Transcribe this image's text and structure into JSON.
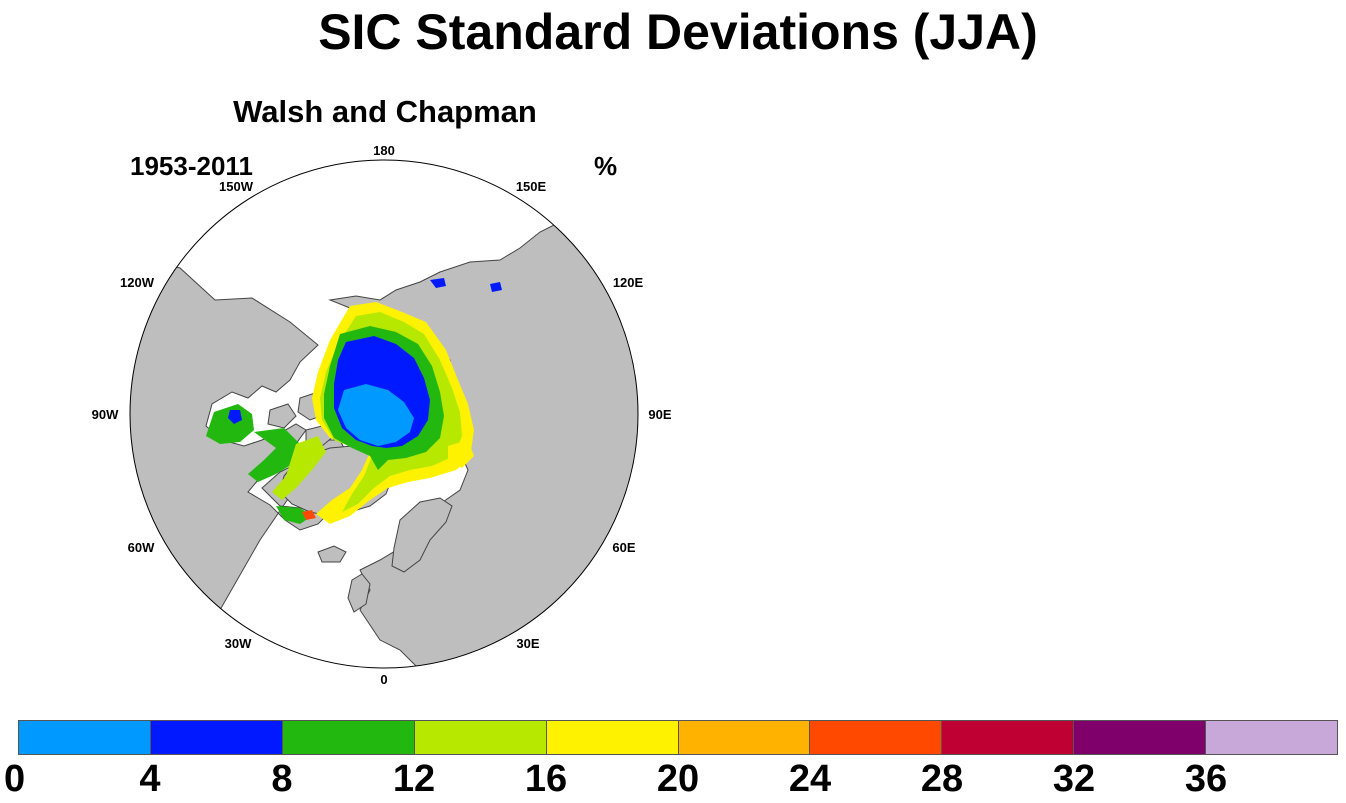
{
  "title": "SIC Standard Deviations (JJA)",
  "panel": {
    "title": "Walsh and Chapman",
    "period": "1953-2011",
    "units": "%"
  },
  "map": {
    "projection": "north-polar-stereographic",
    "land_color": "#bebebe",
    "ocean_color": "#ffffff",
    "longitude_labels": [
      "180",
      "150E",
      "120E",
      "90E",
      "60E",
      "30E",
      "0",
      "30W",
      "60W",
      "90W",
      "120W",
      "150W"
    ]
  },
  "colorbar": {
    "colors": [
      "#0099ff",
      "#0019ff",
      "#23b80f",
      "#b7e800",
      "#fff200",
      "#ffb300",
      "#ff4800",
      "#bf0033",
      "#80006b",
      "#c8a8d8"
    ],
    "labels": [
      "0",
      "4",
      "8",
      "12",
      "16",
      "20",
      "24",
      "28",
      "32",
      "36"
    ]
  }
}
